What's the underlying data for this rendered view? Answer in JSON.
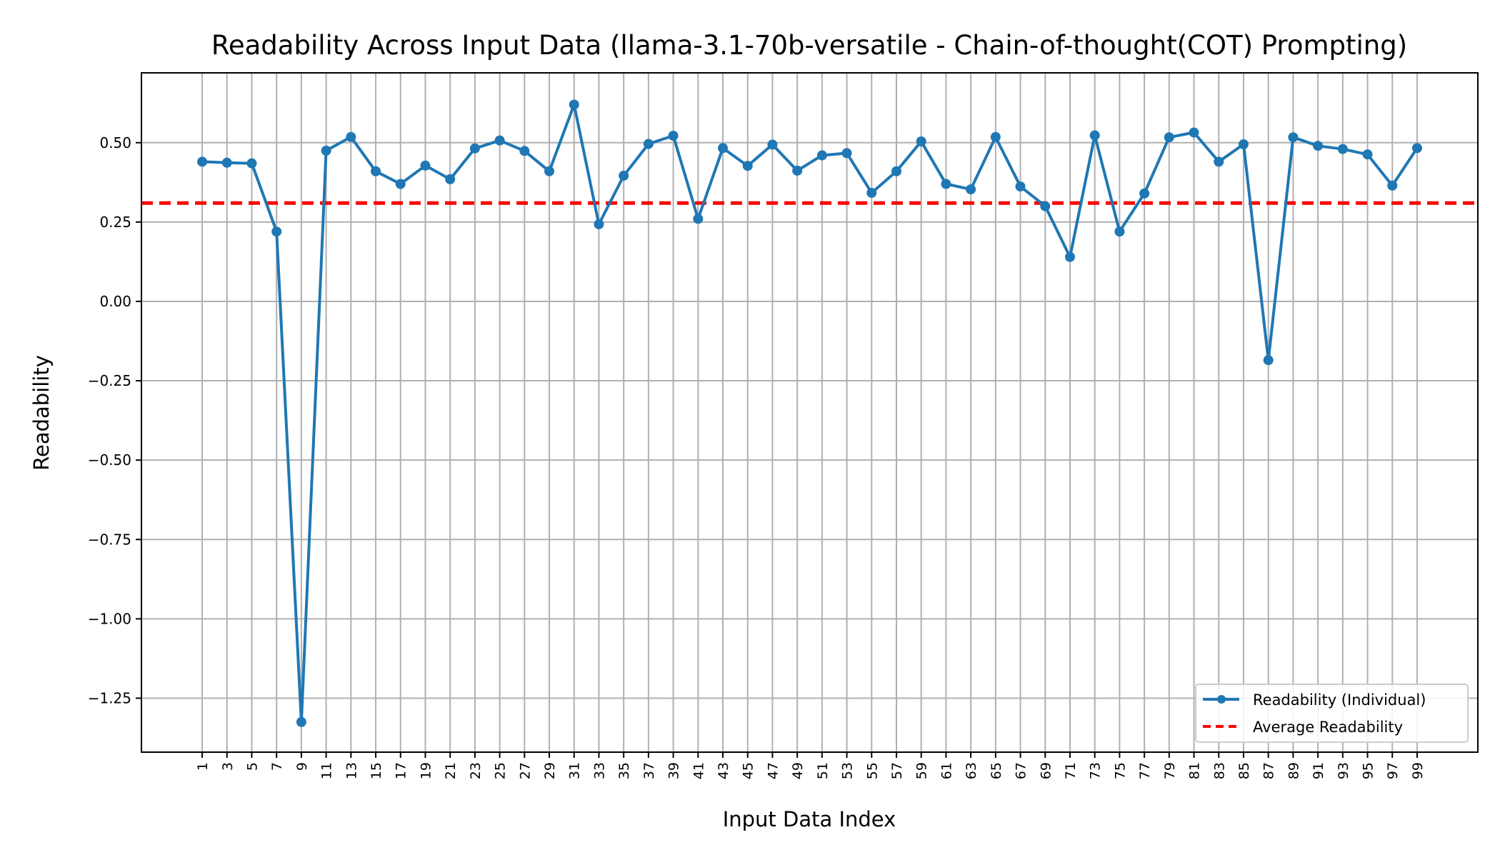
{
  "chart_data": {
    "type": "line",
    "title": "Readability Across Input Data (llama-3.1-70b-versatile - Chain-of-thought(COT) Prompting)",
    "xlabel": "Input Data Index",
    "ylabel": "Readability",
    "x": [
      1,
      3,
      5,
      7,
      9,
      11,
      13,
      15,
      17,
      19,
      21,
      23,
      25,
      27,
      29,
      31,
      33,
      35,
      37,
      39,
      41,
      43,
      45,
      47,
      49,
      51,
      53,
      55,
      57,
      59,
      61,
      63,
      65,
      67,
      69,
      71,
      73,
      75,
      77,
      79,
      81,
      83,
      85,
      87,
      89,
      91,
      93,
      95,
      97,
      99
    ],
    "x_tick_labels": [
      "1",
      "3",
      "5",
      "7",
      "9",
      "11",
      "13",
      "15",
      "17",
      "19",
      "21",
      "23",
      "25",
      "27",
      "29",
      "31",
      "33",
      "35",
      "37",
      "39",
      "41",
      "43",
      "45",
      "47",
      "49",
      "51",
      "53",
      "55",
      "57",
      "59",
      "61",
      "63",
      "65",
      "67",
      "69",
      "71",
      "73",
      "75",
      "77",
      "79",
      "81",
      "83",
      "85",
      "87",
      "89",
      "91",
      "93",
      "95",
      "97",
      "99"
    ],
    "y_ticks": [
      0.5,
      0.25,
      0.0,
      -0.25,
      -0.5,
      -0.75,
      -1.0,
      -1.25
    ],
    "y_tick_labels": [
      "0.50",
      "0.25",
      "0.00",
      "−0.25",
      "−0.50",
      "−0.75",
      "−1.00",
      "−1.25"
    ],
    "xlim": [
      -3.9,
      103.9
    ],
    "ylim": [
      -1.42,
      0.72
    ],
    "grid": true,
    "legend_position": "bottom-right",
    "series": [
      {
        "name": "Readability (Individual)",
        "color": "#1f77b4",
        "style": "solid-line-with-markers",
        "values": [
          0.44,
          0.437,
          0.435,
          0.22,
          -1.325,
          0.475,
          0.518,
          0.41,
          0.37,
          0.428,
          0.385,
          0.482,
          0.507,
          0.474,
          0.41,
          0.62,
          0.243,
          0.396,
          0.496,
          0.522,
          0.26,
          0.483,
          0.427,
          0.494,
          0.412,
          0.46,
          0.467,
          0.342,
          0.41,
          0.504,
          0.37,
          0.353,
          0.518,
          0.362,
          0.3,
          0.14,
          0.523,
          0.22,
          0.34,
          0.517,
          0.532,
          0.44,
          0.495,
          -0.185,
          0.517,
          0.49,
          0.48,
          0.463,
          0.365,
          0.483
        ]
      }
    ],
    "reference_lines": [
      {
        "name": "Average Readability",
        "value": 0.31,
        "color": "#ff0000",
        "style": "dashed"
      }
    ]
  }
}
